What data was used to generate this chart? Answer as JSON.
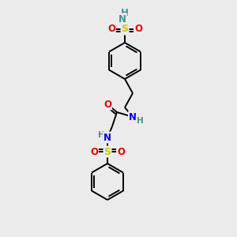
{
  "background_color": "#ebebeb",
  "bond_color": "#000000",
  "atom_colors": {
    "C": "#000000",
    "N": "#0000ee",
    "O": "#ee0000",
    "S": "#cccc00",
    "H": "#4a9090"
  },
  "figsize": [
    3.0,
    3.0
  ],
  "dpi": 100,
  "bond_lw": 1.4,
  "double_sep": 2.8,
  "font_size": 8.5
}
